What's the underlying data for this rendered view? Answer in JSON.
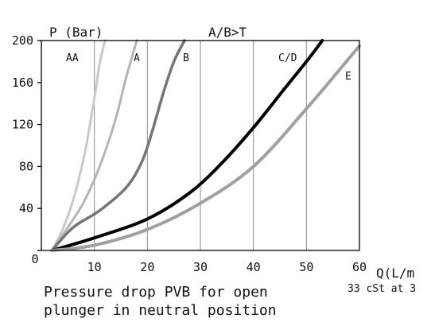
{
  "chart_data": {
    "type": "line",
    "ylabel": "P (Bar)",
    "xlabel": "Q(L/m",
    "header_label": "A/B>T",
    "note": "33 cSt at 3",
    "caption": [
      "Pressure drop PVB for open",
      "plunger in neutral position"
    ],
    "xlim": [
      0,
      60
    ],
    "ylim": [
      0,
      200
    ],
    "x_ticks": [
      0,
      10,
      20,
      30,
      40,
      50,
      60
    ],
    "x_tick_labels": [
      "0",
      "10",
      "20",
      "30",
      "40",
      "50",
      "60"
    ],
    "y_ticks": [
      0,
      40,
      80,
      120,
      160,
      200
    ],
    "y_tick_labels": [
      "0",
      "40",
      "80",
      "120",
      "160",
      "200"
    ],
    "grid": "vertical",
    "series": [
      {
        "name": "AA",
        "color": "#c8c8c8",
        "line_width": 3,
        "x": [
          2,
          4,
          6,
          8,
          9,
          10,
          11,
          12
        ],
        "y": [
          0,
          20,
          48,
          88,
          115,
          145,
          178,
          200
        ]
      },
      {
        "name": "A",
        "color": "#b4b4b4",
        "line_width": 3,
        "x": [
          2,
          5,
          8,
          11,
          14,
          16,
          18
        ],
        "y": [
          0,
          22,
          46,
          80,
          125,
          165,
          200
        ]
      },
      {
        "name": "B",
        "color": "#767676",
        "line_width": 3.5,
        "x": [
          2,
          6,
          11,
          16,
          19,
          21,
          23,
          25,
          27
        ],
        "y": [
          0,
          22,
          38,
          60,
          85,
          115,
          150,
          180,
          200
        ]
      },
      {
        "name": "C/D",
        "color": "#000000",
        "line_width": 4,
        "x": [
          2,
          10,
          20,
          28,
          34,
          40,
          46,
          50,
          53
        ],
        "y": [
          0,
          12,
          30,
          55,
          83,
          117,
          155,
          180,
          200
        ]
      },
      {
        "name": "E",
        "color": "#a0a0a0",
        "line_width": 4,
        "x": [
          2,
          10,
          20,
          30,
          40,
          50,
          60
        ],
        "y": [
          0,
          5,
          20,
          45,
          80,
          135,
          195
        ]
      }
    ]
  }
}
